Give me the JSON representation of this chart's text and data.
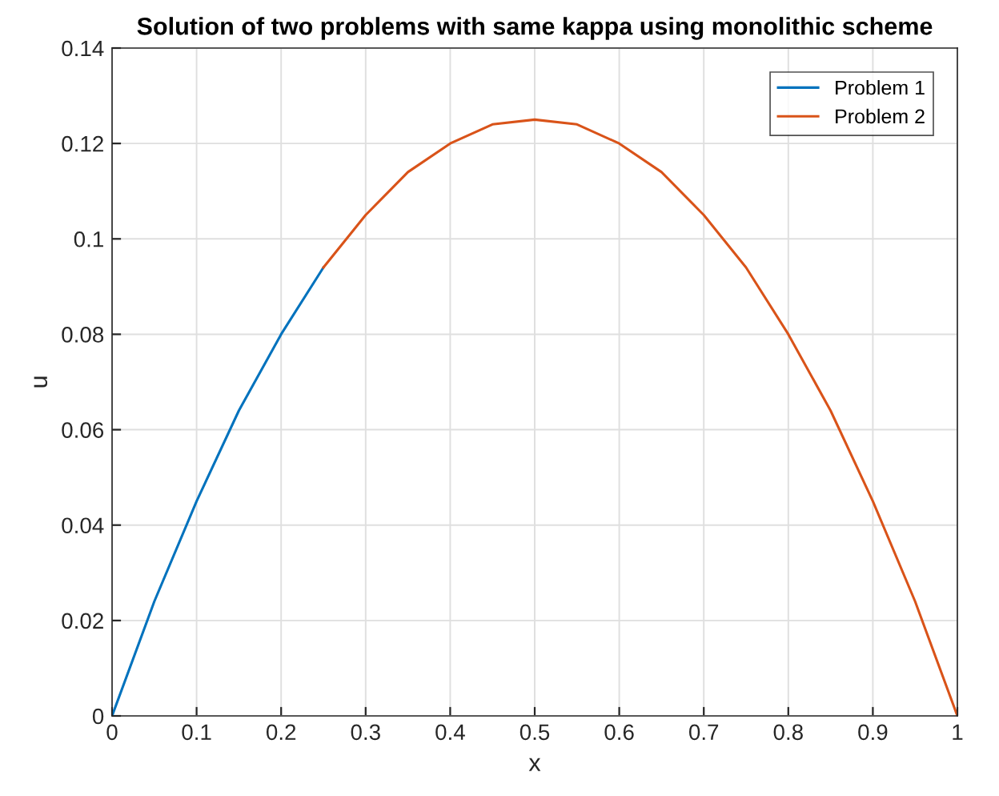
{
  "chart_data": {
    "type": "line",
    "title": "Solution of two problems with same kappa using monolithic scheme",
    "xlabel": "x",
    "ylabel": "u",
    "series": [
      {
        "name": "Problem 1",
        "color": "#0072bd",
        "x": [
          0,
          0.05,
          0.1,
          0.15,
          0.2,
          0.25
        ],
        "values": [
          0,
          0.024,
          0.045,
          0.064,
          0.08,
          0.094
        ]
      },
      {
        "name": "Problem 2",
        "color": "#d95319",
        "x": [
          0.25,
          0.3,
          0.35,
          0.4,
          0.45,
          0.5,
          0.55,
          0.6,
          0.65,
          0.7,
          0.75,
          0.8,
          0.85,
          0.9,
          0.95,
          1
        ],
        "values": [
          0.094,
          0.105,
          0.114,
          0.12,
          0.124,
          0.125,
          0.124,
          0.12,
          0.114,
          0.105,
          0.094,
          0.08,
          0.064,
          0.045,
          0.024,
          0
        ]
      }
    ],
    "xlim": [
      0,
      1
    ],
    "xticks": [
      0,
      0.1,
      0.2,
      0.3,
      0.4,
      0.5,
      0.6,
      0.7,
      0.8,
      0.9,
      1
    ],
    "ylim": [
      0,
      0.14
    ],
    "yticks": [
      0,
      0.02,
      0.04,
      0.06,
      0.08,
      0.1,
      0.12,
      0.14
    ],
    "grid": true,
    "legend": "top right"
  }
}
